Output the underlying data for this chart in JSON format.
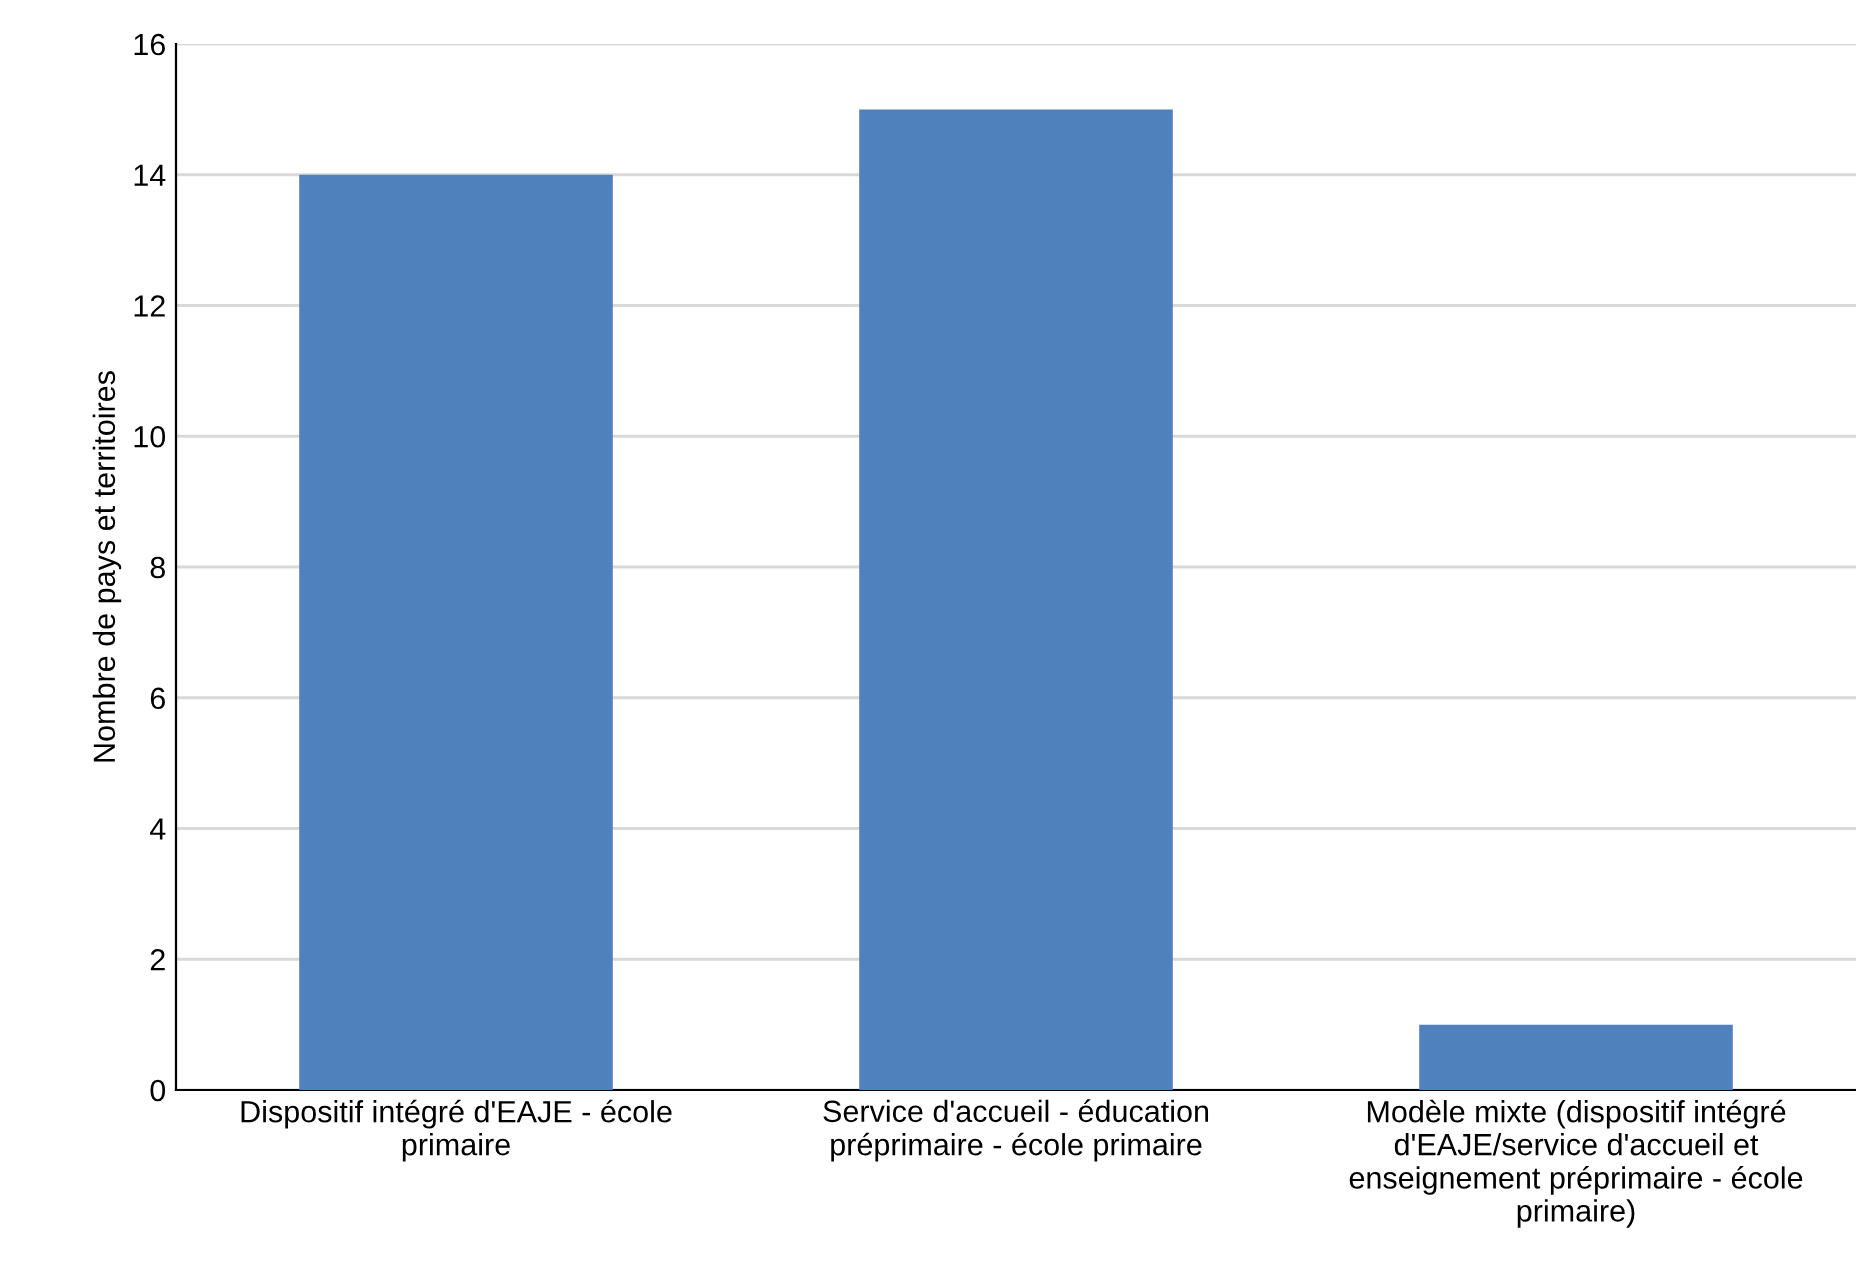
{
  "chart_data": {
    "type": "bar",
    "ylabel": "Nombre de pays et territoires",
    "categories": [
      "Dispositif intégré d'EAJE - école primaire",
      "Service d'accueil - éducation préprimaire - école primaire",
      "Modèle mixte (dispositif intégré d'EAJE/service d'accueil et enseignement préprimaire - école primaire)"
    ],
    "values": [
      14,
      15,
      1
    ],
    "color": "#4f81bd",
    "ylim": [
      0,
      16
    ],
    "yticks": [
      0,
      2,
      4,
      6,
      8,
      10,
      12,
      14,
      16
    ],
    "grid": "y",
    "legend": false
  }
}
